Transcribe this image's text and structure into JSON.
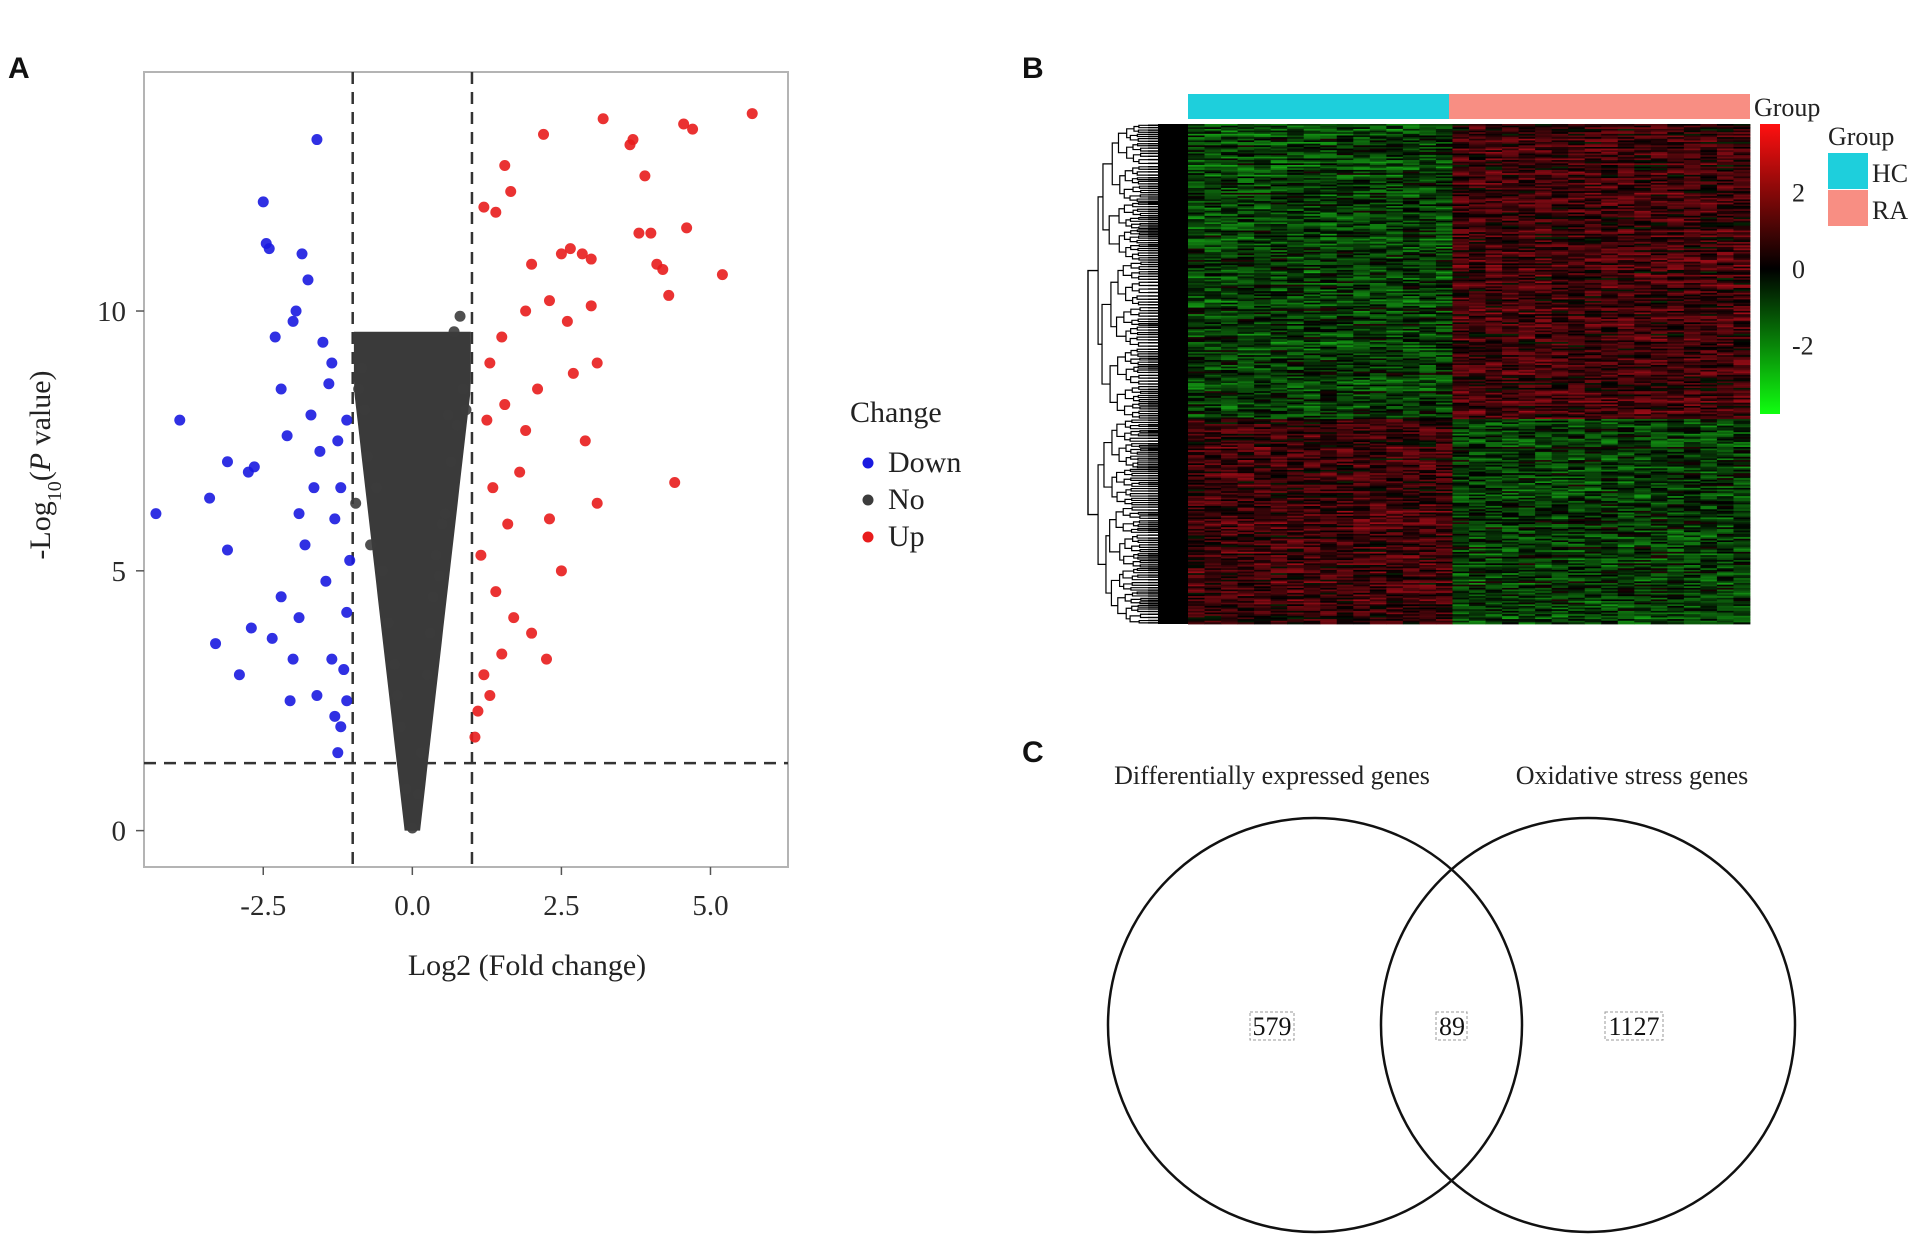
{
  "panels": {
    "a": "A",
    "b": "B",
    "c": "C"
  },
  "chart_data": [
    {
      "type": "scatter",
      "xlabel": "Log2 (Fold change)",
      "ylabel_parts": {
        "pre": "-Log",
        "sub": "10",
        "open": "(",
        "italic": "P",
        "post": " value)"
      },
      "xlim": [
        -4.5,
        6.3
      ],
      "ylim": [
        -0.7,
        14.6
      ],
      "xticks": [
        "-2.5",
        "0.0",
        "2.5",
        "5.0"
      ],
      "xtick_values": [
        -2.5,
        0.0,
        2.5,
        5.0
      ],
      "yticks": [
        "0",
        "5",
        "10"
      ],
      "ytick_values": [
        0,
        5,
        10
      ],
      "thresholds": {
        "log2fc": [
          -1,
          1
        ],
        "neg_log10_p": 1.3
      },
      "legend": {
        "title": "Change",
        "placement": "right",
        "entries": [
          "Down",
          "No",
          "Up"
        ]
      },
      "colors": {
        "Down": "#1a1ae0",
        "No": "#3c3c3c",
        "Up": "#e81c1c"
      },
      "series": [
        {
          "name": "Down",
          "points": [
            [
              -4.3,
              6.1
            ],
            [
              -3.9,
              7.9
            ],
            [
              -3.4,
              6.4
            ],
            [
              -3.3,
              3.6
            ],
            [
              -3.1,
              7.1
            ],
            [
              -3.1,
              5.4
            ],
            [
              -2.9,
              3.0
            ],
            [
              -2.75,
              6.9
            ],
            [
              -2.7,
              3.9
            ],
            [
              -2.65,
              7.0
            ],
            [
              -2.5,
              12.1
            ],
            [
              -2.45,
              11.3
            ],
            [
              -2.4,
              11.2
            ],
            [
              -2.3,
              9.5
            ],
            [
              -2.2,
              8.5
            ],
            [
              -2.1,
              7.6
            ],
            [
              -2.05,
              2.5
            ],
            [
              -2.0,
              9.8
            ],
            [
              -1.95,
              10.0
            ],
            [
              -1.9,
              6.1
            ],
            [
              -1.85,
              11.1
            ],
            [
              -1.75,
              10.6
            ],
            [
              -1.6,
              13.3
            ],
            [
              -1.5,
              9.4
            ],
            [
              -1.45,
              4.8
            ],
            [
              -1.35,
              3.3
            ],
            [
              -2.2,
              4.5
            ],
            [
              -1.8,
              5.5
            ],
            [
              -1.7,
              8.0
            ],
            [
              -1.65,
              6.6
            ],
            [
              -1.55,
              7.3
            ],
            [
              -1.4,
              8.6
            ],
            [
              -1.3,
              6.0
            ],
            [
              -1.25,
              7.5
            ],
            [
              -1.2,
              2.0
            ],
            [
              -1.15,
              3.1
            ],
            [
              -1.1,
              4.2
            ],
            [
              -1.05,
              5.2
            ],
            [
              -1.1,
              2.5
            ],
            [
              -1.2,
              6.6
            ],
            [
              -1.3,
              2.2
            ],
            [
              -1.35,
              9.0
            ],
            [
              -1.9,
              4.1
            ],
            [
              -2.35,
              3.7
            ],
            [
              -2.0,
              3.3
            ],
            [
              -1.6,
              2.6
            ],
            [
              -1.25,
              1.5
            ],
            [
              -1.1,
              7.9
            ]
          ]
        },
        {
          "name": "Up",
          "points": [
            [
              5.7,
              13.8
            ],
            [
              4.7,
              13.5
            ],
            [
              4.55,
              13.6
            ],
            [
              3.2,
              13.7
            ],
            [
              2.2,
              13.4
            ],
            [
              3.65,
              13.2
            ],
            [
              3.7,
              13.3
            ],
            [
              3.9,
              12.6
            ],
            [
              1.55,
              12.8
            ],
            [
              1.65,
              12.3
            ],
            [
              1.2,
              12.0
            ],
            [
              1.4,
              11.9
            ],
            [
              4.6,
              11.6
            ],
            [
              3.8,
              11.5
            ],
            [
              4.0,
              11.5
            ],
            [
              4.1,
              10.9
            ],
            [
              4.2,
              10.8
            ],
            [
              5.2,
              10.7
            ],
            [
              4.3,
              10.3
            ],
            [
              4.4,
              6.7
            ],
            [
              2.5,
              11.1
            ],
            [
              2.65,
              11.2
            ],
            [
              2.85,
              11.1
            ],
            [
              3.0,
              11.0
            ],
            [
              2.0,
              10.9
            ],
            [
              1.9,
              10.0
            ],
            [
              2.3,
              10.2
            ],
            [
              2.6,
              9.8
            ],
            [
              3.0,
              10.1
            ],
            [
              3.1,
              9.0
            ],
            [
              2.7,
              8.8
            ],
            [
              1.5,
              9.5
            ],
            [
              1.3,
              9.0
            ],
            [
              2.9,
              7.5
            ],
            [
              3.1,
              6.3
            ],
            [
              2.3,
              6.0
            ],
            [
              2.5,
              5.0
            ],
            [
              2.25,
              3.3
            ],
            [
              1.7,
              4.1
            ],
            [
              1.5,
              3.4
            ],
            [
              1.9,
              7.7
            ],
            [
              2.1,
              8.5
            ],
            [
              1.25,
              7.9
            ],
            [
              1.35,
              6.6
            ],
            [
              1.15,
              5.3
            ],
            [
              1.1,
              2.3
            ],
            [
              1.2,
              3.0
            ],
            [
              1.4,
              4.6
            ],
            [
              1.6,
              5.9
            ],
            [
              1.8,
              6.9
            ],
            [
              2.0,
              3.8
            ],
            [
              1.05,
              1.8
            ],
            [
              1.3,
              2.6
            ],
            [
              1.55,
              8.2
            ]
          ]
        },
        {
          "name": "No",
          "points": [
            [
              0.0,
              0.05
            ],
            [
              0.8,
              9.9
            ],
            [
              0.7,
              9.6
            ],
            [
              0.6,
              8.0
            ],
            [
              0.5,
              5.9
            ],
            [
              -0.85,
              8.9
            ],
            [
              -0.9,
              8.5
            ],
            [
              -0.8,
              8.1
            ],
            [
              -0.5,
              5.0
            ],
            [
              -0.6,
              6.6
            ],
            [
              -0.75,
              7.2
            ],
            [
              0.35,
              4.5
            ],
            [
              0.25,
              3.0
            ],
            [
              -0.3,
              3.2
            ],
            [
              -0.2,
              2.0
            ],
            [
              0.15,
              1.5
            ],
            [
              -0.1,
              0.8
            ],
            [
              0.1,
              0.7
            ],
            [
              0.45,
              4.9
            ],
            [
              0.55,
              6.1
            ],
            [
              0.65,
              7.1
            ],
            [
              0.9,
              8.1
            ],
            [
              0.85,
              8.5
            ],
            [
              -0.95,
              6.3
            ],
            [
              -0.7,
              5.5
            ],
            [
              -0.4,
              4.0
            ],
            [
              -0.25,
              2.6
            ],
            [
              0.3,
              3.8
            ],
            [
              0.4,
              5.3
            ],
            [
              0.75,
              7.8
            ]
          ]
        }
      ]
    },
    {
      "type": "heatmap",
      "colorbar": {
        "ticks": [
          "2",
          "0",
          "-2"
        ],
        "tick_values": [
          2,
          0,
          -2
        ],
        "range": [
          -3.8,
          3.8
        ]
      },
      "annotation_label": "Group",
      "legend": {
        "title": "Group",
        "placement": "top-right",
        "entries": [
          {
            "name": "HC",
            "color": "#1ecfdc"
          },
          {
            "name": "RA",
            "color": "#f88e83"
          }
        ]
      },
      "columns": {
        "HC": 16,
        "RA": 18
      },
      "row_clusters": [
        {
          "name": "cluster-1",
          "rows": 180,
          "HC": -1.0,
          "RA": 1.0
        },
        {
          "name": "cluster-2",
          "rows": 125,
          "HC": 1.0,
          "RA": -0.9
        }
      ],
      "colors": {
        "low": "#1ee61e",
        "mid": "#000000",
        "high": "#e01020"
      }
    },
    {
      "type": "venn",
      "sets": [
        "Differentially expressed genes",
        "Oxidative stress genes"
      ],
      "counts": {
        "left_only": "579",
        "both": "89",
        "right_only": "1127"
      }
    }
  ]
}
